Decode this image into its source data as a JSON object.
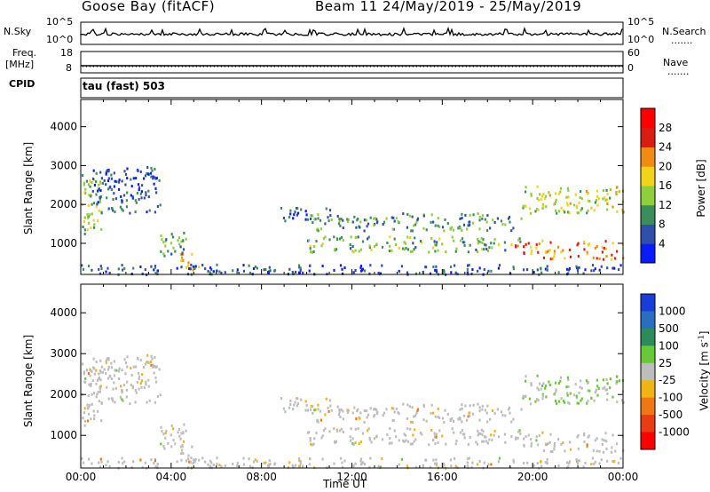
{
  "header": {
    "station": "Goose Bay (fitACF)",
    "beam_dates": "Beam 11 24/May/2019 - 25/May/2019"
  },
  "labels": {
    "nsky": "N.Sky",
    "nsearch": "N.Search",
    "freq": "Freq.",
    "mhz": "[MHz]",
    "cpid": "CPID",
    "nave": "Nave",
    "nsky_top": "10^5",
    "nsky_bottom": "10^0",
    "nsearch_top": "10^5",
    "nsearch_bottom": "10^0",
    "freq_top": "18",
    "freq_bottom": "8",
    "nave_top": "60",
    "nave_bottom": "0",
    "cpid_value": "tau (fast) 503",
    "dots": "......."
  },
  "chart_data": [
    {
      "type": "heatmap",
      "panel": "power",
      "ylabel": "Slant Range [km]",
      "yticks": [
        1000,
        2000,
        3000,
        4000
      ],
      "ylim": [
        200,
        4700
      ],
      "xlim_hours": [
        0,
        24
      ],
      "colorbar": {
        "label": "Power [dB]",
        "ticks": [
          "4",
          "8",
          "12",
          "16",
          "20",
          "24",
          "28"
        ],
        "colors": [
          "#0a1cff",
          "#2f4fa8",
          "#3c8c5c",
          "#8fce3c",
          "#f2d21a",
          "#f08c14",
          "#d81e14",
          "#ff0000"
        ]
      },
      "echo_regions": [
        {
          "t": [
            0.0,
            0.9
          ],
          "r": [
            1200,
            2900
          ],
          "level": 14
        },
        {
          "t": [
            0.5,
            3.5
          ],
          "r": [
            1800,
            3000
          ],
          "level": 6
        },
        {
          "t": [
            3.4,
            4.7
          ],
          "r": [
            700,
            1300
          ],
          "level": 10
        },
        {
          "t": [
            4.3,
            5.2
          ],
          "r": [
            300,
            800
          ],
          "level": 22
        },
        {
          "t": [
            0.0,
            24.0
          ],
          "r": [
            220,
            480
          ],
          "level": 6
        },
        {
          "t": [
            8.8,
            11.0
          ],
          "r": [
            1600,
            1950
          ],
          "level": 6
        },
        {
          "t": [
            10.0,
            19.5
          ],
          "r": [
            1350,
            1800
          ],
          "level": 10
        },
        {
          "t": [
            10.0,
            19.5
          ],
          "r": [
            800,
            1200
          ],
          "level": 12
        },
        {
          "t": [
            19.5,
            24.0
          ],
          "r": [
            1800,
            2500
          ],
          "level": 16
        },
        {
          "t": [
            19.2,
            24.0
          ],
          "r": [
            600,
            1100
          ],
          "level": 22
        }
      ]
    },
    {
      "type": "heatmap",
      "panel": "velocity",
      "ylabel": "Slant Range [km]",
      "yticks": [
        1000,
        2000,
        3000,
        4000
      ],
      "ylim": [
        200,
        4700
      ],
      "xlabel": "Time UT",
      "xticks": [
        "00:00",
        "04:00",
        "08:00",
        "12:00",
        "16:00",
        "20:00",
        "00:00"
      ],
      "xlim_hours": [
        0,
        24
      ],
      "colorbar": {
        "label": "Velocity [m s^-1]",
        "ticks": [
          "1000",
          "500",
          "100",
          "25",
          "-25",
          "-100",
          "-500",
          "-1000"
        ],
        "colors": [
          "#1a3cd8",
          "#2a6ec0",
          "#2e8a5a",
          "#68c83c",
          "#bdbdbd",
          "#f0b414",
          "#f07814",
          "#e83c14",
          "#ff0000"
        ]
      }
    }
  ]
}
